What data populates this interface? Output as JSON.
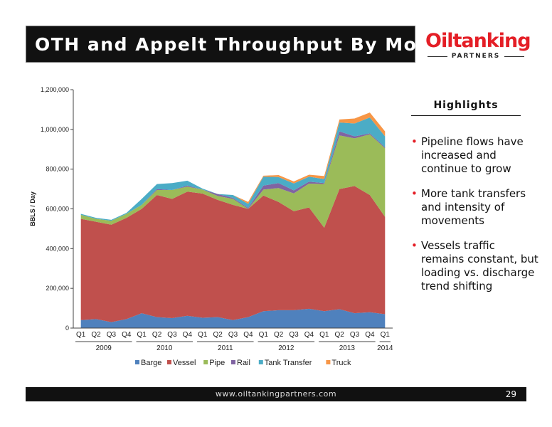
{
  "header": {
    "title": "OTH and Appelt Throughput By Mode",
    "logo_text": "Oiltanking",
    "logo_subtext": "PARTNERS"
  },
  "highlights": {
    "heading": "Highlights",
    "bullets": [
      "Pipeline flows have increased and continue to grow",
      "More tank transfers and intensity of movements",
      "Vessels traffic remains constant, but loading vs. discharge trend shifting"
    ]
  },
  "footer": {
    "url": "www.oiltankingpartners.com",
    "page": "29"
  },
  "colors": {
    "title_bar": "#111111",
    "brand_red": "#e41e26",
    "Barge": "#4f81bd",
    "Vessel": "#c0504d",
    "Pipe": "#9bbb59",
    "Rail": "#8064a2",
    "Tank Transfer": "#4bacc6",
    "Truck": "#f79646"
  },
  "chart_data": {
    "type": "area",
    "stacked": true,
    "ylabel": "BBLS /  Day",
    "ylim": [
      0,
      1200000
    ],
    "yticks": [
      0,
      200000,
      400000,
      600000,
      800000,
      1000000,
      1200000
    ],
    "ytick_labels": [
      "0",
      "200,000",
      "400,000",
      "600,000",
      "800,000",
      "1,000,000",
      "1,200,000"
    ],
    "categories": [
      "Q1",
      "Q2",
      "Q3",
      "Q4",
      "Q1",
      "Q2",
      "Q3",
      "Q4",
      "Q1",
      "Q2",
      "Q3",
      "Q4",
      "Q1",
      "Q2",
      "Q3",
      "Q4",
      "Q1",
      "Q2",
      "Q3",
      "Q4",
      "Q1"
    ],
    "year_groups": [
      {
        "label": "2009",
        "start": 0,
        "end": 3
      },
      {
        "label": "2010",
        "start": 4,
        "end": 7
      },
      {
        "label": "2011",
        "start": 8,
        "end": 11
      },
      {
        "label": "2012",
        "start": 12,
        "end": 15
      },
      {
        "label": "2013",
        "start": 16,
        "end": 19
      },
      {
        "label": "2014",
        "start": 20,
        "end": 20
      }
    ],
    "legend_position": "bottom",
    "series": [
      {
        "name": "Barge",
        "values": [
          40000,
          45000,
          30000,
          45000,
          75000,
          55000,
          50000,
          62000,
          52000,
          55000,
          40000,
          55000,
          85000,
          90000,
          90000,
          97000,
          85000,
          95000,
          75000,
          80000,
          70000
        ]
      },
      {
        "name": "Vessel",
        "values": [
          510000,
          490000,
          490000,
          510000,
          525000,
          615000,
          600000,
          625000,
          625000,
          590000,
          580000,
          545000,
          582000,
          545000,
          498000,
          510000,
          420000,
          605000,
          640000,
          590000,
          490000
        ]
      },
      {
        "name": "Pipe",
        "values": [
          20000,
          15000,
          20000,
          20000,
          20000,
          25000,
          45000,
          25000,
          20000,
          20000,
          30000,
          0,
          30000,
          70000,
          90000,
          120000,
          220000,
          270000,
          240000,
          305000,
          345000
        ]
      },
      {
        "name": "Rail",
        "values": [
          0,
          0,
          0,
          0,
          0,
          5000,
          0,
          5000,
          0,
          10000,
          5000,
          5000,
          20000,
          25000,
          15000,
          10000,
          5000,
          20000,
          10000,
          5000,
          5000
        ]
      },
      {
        "name": "Tank Transfer",
        "values": [
          5000,
          5000,
          5000,
          5000,
          30000,
          25000,
          35000,
          25000,
          5000,
          0,
          15000,
          20000,
          45000,
          30000,
          35000,
          25000,
          20000,
          45000,
          65000,
          80000,
          55000
        ]
      },
      {
        "name": "Truck",
        "values": [
          0,
          0,
          0,
          0,
          0,
          0,
          0,
          0,
          0,
          0,
          0,
          10000,
          5000,
          10000,
          10000,
          10000,
          15000,
          15000,
          25000,
          25000,
          25000
        ]
      }
    ]
  }
}
